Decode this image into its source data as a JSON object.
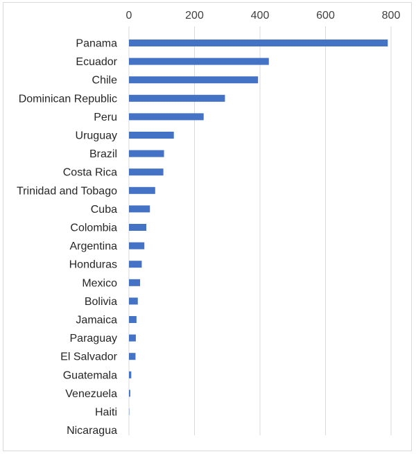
{
  "chart_data": {
    "type": "bar",
    "orientation": "horizontal",
    "title": "",
    "xlabel": "",
    "ylabel": "",
    "xlim": [
      0,
      800
    ],
    "x_ticks": [
      0,
      200,
      400,
      600,
      800
    ],
    "x_axis_position": "top",
    "grid": true,
    "legend": "none",
    "bar_color": "#4472C4",
    "grid_color": "#d9d9d9",
    "categories": [
      "Panama",
      "Ecuador",
      "Chile",
      "Dominican Republic",
      "Peru",
      "Uruguay",
      "Brazil",
      "Costa Rica",
      "Trinidad and Tobago",
      "Cuba",
      "Colombia",
      "Argentina",
      "Honduras",
      "Mexico",
      "Bolivia",
      "Jamaica",
      "Paraguay",
      "El Salvador",
      "Guatemala",
      "Venezuela",
      "Haiti",
      "Nicaragua"
    ],
    "values": [
      790,
      427,
      394,
      293,
      228,
      137,
      107,
      105,
      80,
      64,
      53,
      47,
      39,
      34,
      27,
      23,
      21,
      20,
      7,
      4,
      1,
      0
    ]
  }
}
